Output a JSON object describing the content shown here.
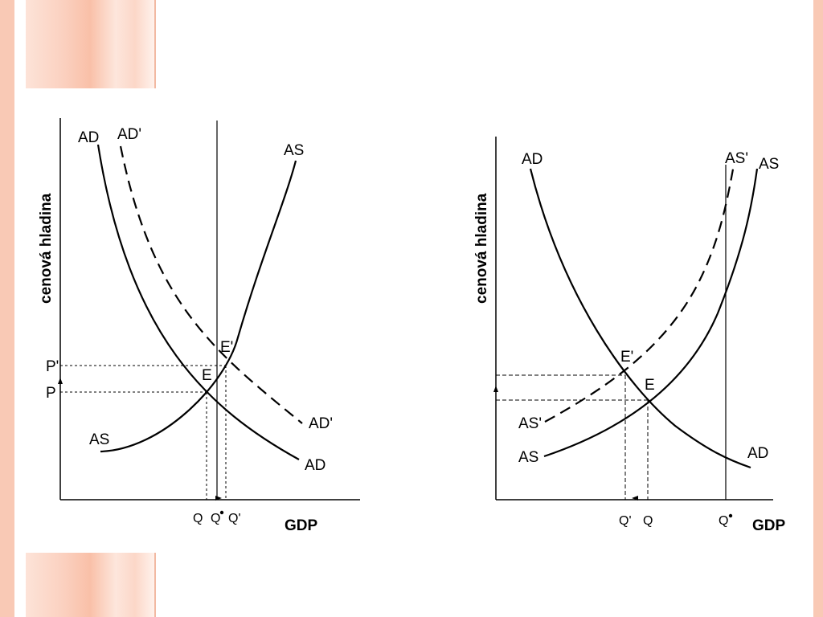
{
  "left_diagram": {
    "y_axis_title": "cenová hladina",
    "x_axis_title": "GDP",
    "curves": {
      "ad_top": "AD",
      "ad_prime_top": "AD'",
      "as_top": "AS",
      "as_bottom": "AS",
      "ad_prime_end": "AD'",
      "ad_end": "AD"
    },
    "points": {
      "e_prime": "E'",
      "e": "E"
    },
    "y_ticks": {
      "p_prime": "P'",
      "p": "P"
    },
    "x_ticks": {
      "q": "Q",
      "q_star": "Q",
      "q_prime": "Q'"
    }
  },
  "right_diagram": {
    "y_axis_title": "cenová hladina",
    "x_axis_title": "GDP",
    "curves": {
      "ad_top": "AD",
      "as_prime_top": "AS'",
      "as_top": "AS",
      "as_prime_bottom": "AS'",
      "as_bottom": "AS",
      "ad_end": "AD"
    },
    "points": {
      "e_prime": "E'",
      "e": "E"
    },
    "x_ticks": {
      "q_prime": "Q'",
      "q": "Q",
      "q_star": "Q"
    }
  }
}
